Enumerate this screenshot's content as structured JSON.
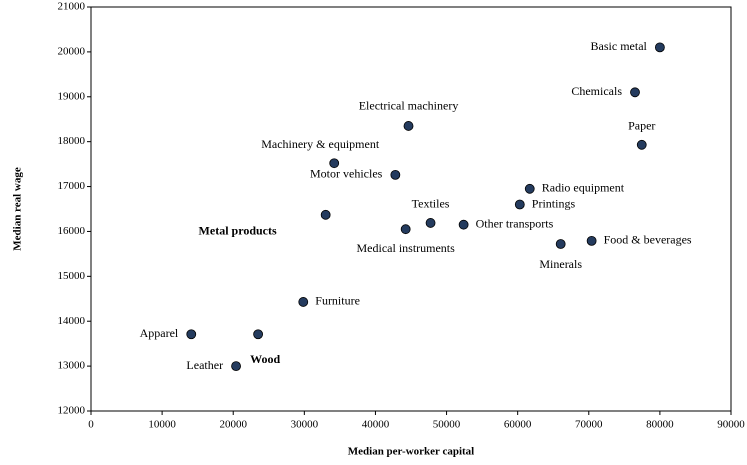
{
  "chart_data": {
    "type": "scatter",
    "xlabel": "Median per-worker capital",
    "ylabel": "Median real wage",
    "color": "#243b5e",
    "point_labels": [
      "Basic metal",
      "Chemicals",
      "Electrical machinery",
      "Paper",
      "Machinery & equipment",
      "Motor vehicles",
      "Radio equipment",
      "Printings",
      "Metal products",
      "Textiles",
      "Other transports",
      "Medical instruments",
      "Minerals",
      "Food & beverages",
      "Furniture",
      "Apparel",
      "Wood",
      "Leather"
    ],
    "x": [
      80000,
      76500,
      44650,
      77450,
      34200,
      42800,
      61700,
      60300,
      33000,
      47750,
      52400,
      44250,
      66050,
      70400,
      29850,
      14100,
      23500,
      20400
    ],
    "values": [
      20100,
      19100,
      18350,
      17930,
      17520,
      17260,
      16950,
      16600,
      16370,
      16190,
      16150,
      16050,
      15720,
      15790,
      14430,
      13710,
      13710,
      13000
    ],
    "xlim": [
      0,
      90000
    ],
    "ylim": [
      12000,
      21000
    ],
    "xticks": [
      0,
      10000,
      20000,
      30000,
      40000,
      50000,
      60000,
      70000,
      80000,
      90000
    ],
    "yticks": [
      12000,
      13000,
      14000,
      15000,
      16000,
      17000,
      18000,
      19000,
      20000,
      21000
    ]
  }
}
